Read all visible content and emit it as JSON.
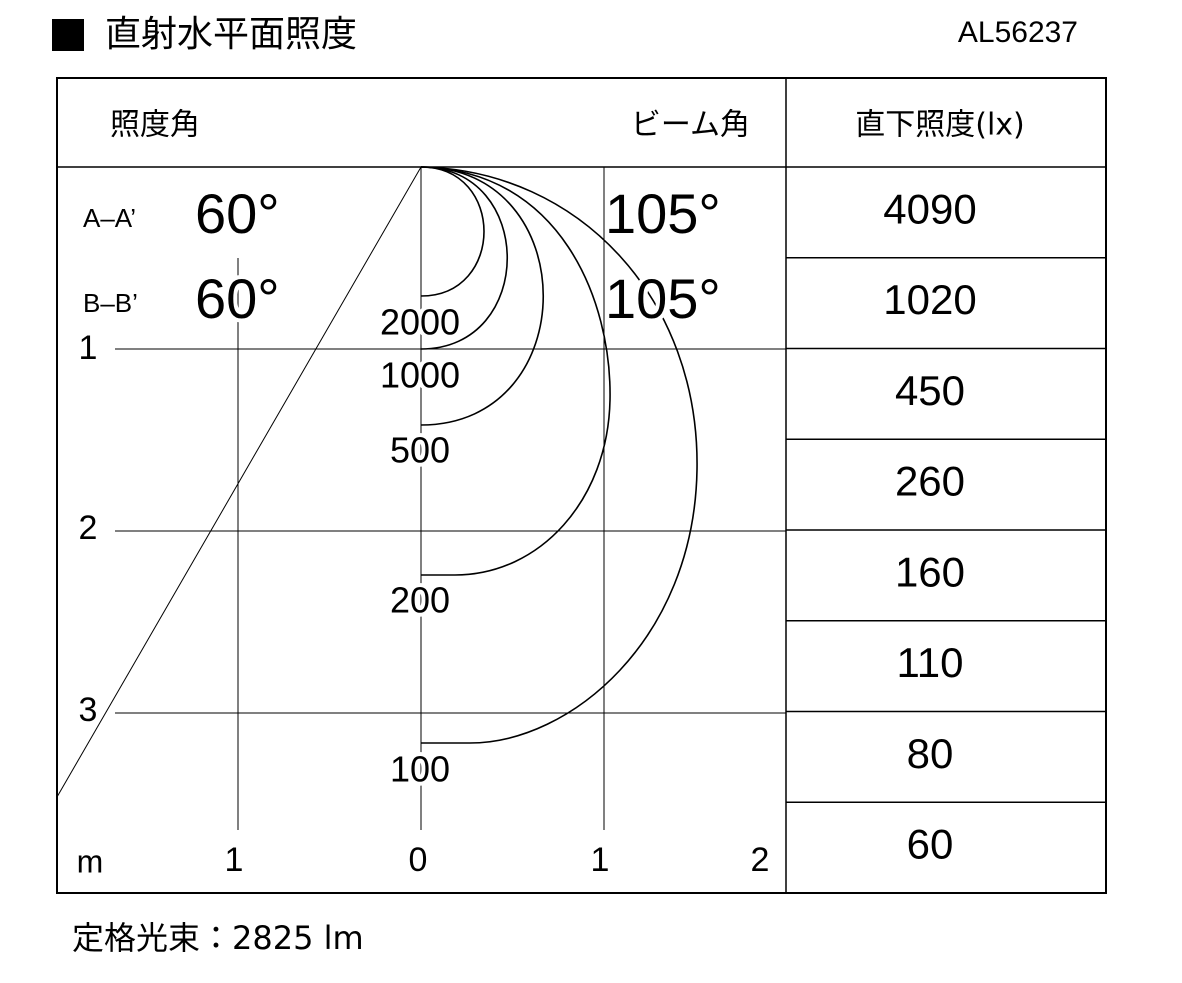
{
  "header": {
    "title": "直射水平面照度",
    "model": "AL56237"
  },
  "table": {
    "headers": [
      "照度角",
      "ビーム角",
      "直下照度(lx)"
    ],
    "angles": [
      {
        "label": "A–A’",
        "angle": "60°",
        "beam": "105°"
      },
      {
        "label": "B–B’",
        "angle": "60°",
        "beam": "105°"
      }
    ],
    "illuminance": [
      "4090",
      "1020",
      "450",
      "260",
      "160",
      "110",
      "80",
      "60"
    ]
  },
  "diagram": {
    "isolux_labels": [
      "2000",
      "1000",
      "500",
      "200",
      "100"
    ],
    "depth_labels": [
      "1",
      "2",
      "3"
    ],
    "x_unit": "m",
    "x_labels": [
      "1",
      "0",
      "1",
      "2"
    ]
  },
  "footer": {
    "flux": "定格光束：2825 lm"
  }
}
